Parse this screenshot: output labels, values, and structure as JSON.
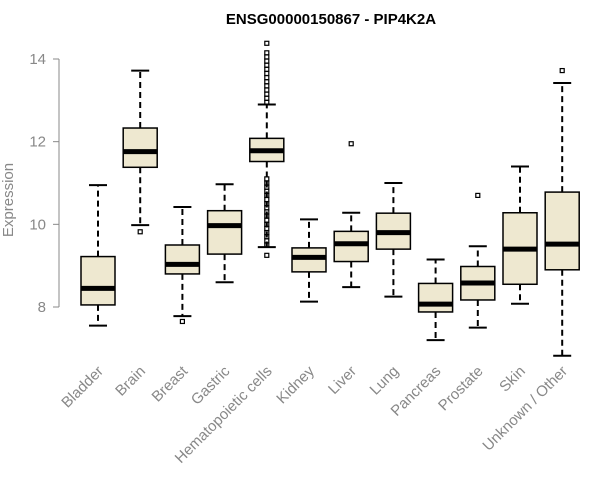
{
  "chart_data": {
    "type": "boxplot",
    "title": "ENSG00000150867 - PIP4K2A",
    "xlabel": "",
    "ylabel": "Expression",
    "ylim": [
      6.6,
      14.4
    ],
    "yticks": [
      8,
      10,
      12,
      14
    ],
    "box_color": "#EEE8D0",
    "categories": [
      "Bladder",
      "Brain",
      "Breast",
      "Gastric",
      "Hematopoietic cells",
      "Kidney",
      "Liver",
      "Lung",
      "Pancreas",
      "Prostate",
      "Skin",
      "Unknown / Other"
    ],
    "boxes": [
      {
        "category": "Bladder",
        "whisker_low": 7.55,
        "q1": 8.05,
        "median": 8.45,
        "q3": 9.22,
        "whisker_high": 10.95,
        "outliers": []
      },
      {
        "category": "Brain",
        "whisker_low": 9.98,
        "q1": 11.38,
        "median": 11.76,
        "q3": 12.33,
        "whisker_high": 13.72,
        "outliers": [
          9.82
        ]
      },
      {
        "category": "Breast",
        "whisker_low": 7.78,
        "q1": 8.8,
        "median": 9.03,
        "q3": 9.5,
        "whisker_high": 10.42,
        "outliers": [
          7.65
        ]
      },
      {
        "category": "Gastric",
        "whisker_low": 8.6,
        "q1": 9.28,
        "median": 9.97,
        "q3": 10.33,
        "whisker_high": 10.97,
        "outliers": []
      },
      {
        "category": "Hematopoietic cells",
        "whisker_low": 9.45,
        "q1": 11.52,
        "median": 11.78,
        "q3": 12.08,
        "whisker_high": 12.9,
        "outliers": [
          9.25,
          9.5,
          9.6,
          9.7,
          9.8,
          9.9,
          10.0,
          10.1,
          10.2,
          10.3,
          10.4,
          10.5,
          10.6,
          10.7,
          10.8,
          10.9,
          11.0,
          11.1,
          12.95,
          13.05,
          13.15,
          13.25,
          13.35,
          13.45,
          13.55,
          13.65,
          13.75,
          13.85,
          13.95,
          14.05,
          14.15,
          14.38
        ]
      },
      {
        "category": "Kidney",
        "whisker_low": 8.13,
        "q1": 8.85,
        "median": 9.2,
        "q3": 9.43,
        "whisker_high": 10.12,
        "outliers": []
      },
      {
        "category": "Liver",
        "whisker_low": 8.48,
        "q1": 9.1,
        "median": 9.53,
        "q3": 9.83,
        "whisker_high": 10.28,
        "outliers": [
          11.95
        ]
      },
      {
        "category": "Lung",
        "whisker_low": 8.25,
        "q1": 9.4,
        "median": 9.8,
        "q3": 10.27,
        "whisker_high": 11.0,
        "outliers": []
      },
      {
        "category": "Pancreas",
        "whisker_low": 7.2,
        "q1": 7.88,
        "median": 8.07,
        "q3": 8.57,
        "whisker_high": 9.15,
        "outliers": []
      },
      {
        "category": "Prostate",
        "whisker_low": 7.5,
        "q1": 8.17,
        "median": 8.58,
        "q3": 8.98,
        "whisker_high": 9.47,
        "outliers": [
          10.7
        ]
      },
      {
        "category": "Skin",
        "whisker_low": 8.08,
        "q1": 8.55,
        "median": 9.4,
        "q3": 10.28,
        "whisker_high": 11.4,
        "outliers": []
      },
      {
        "category": "Unknown / Other",
        "whisker_low": 6.82,
        "q1": 8.9,
        "median": 9.52,
        "q3": 10.78,
        "whisker_high": 13.42,
        "outliers": [
          13.72
        ]
      }
    ]
  }
}
